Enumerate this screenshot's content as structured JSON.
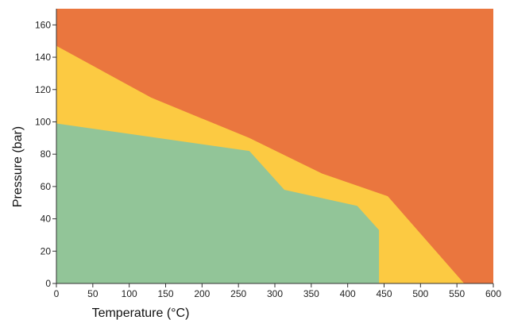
{
  "chart_data": {
    "type": "area",
    "title": "",
    "xlabel": "Temperature (°C)",
    "ylabel": "Pressure (bar)",
    "xlim": [
      0,
      600
    ],
    "ylim": [
      0,
      170
    ],
    "x_ticks": [
      0,
      50,
      100,
      150,
      200,
      250,
      300,
      350,
      400,
      450,
      500,
      550,
      600
    ],
    "y_ticks": [
      0,
      20,
      40,
      60,
      80,
      100,
      120,
      140,
      160
    ],
    "grid": false,
    "legend": "none",
    "regions": [
      {
        "color": "#ea763e",
        "points": [
          [
            0,
            0
          ],
          [
            600,
            0
          ],
          [
            600,
            170
          ],
          [
            0,
            170
          ]
        ]
      },
      {
        "color": "#fcca42",
        "points": [
          [
            0,
            0
          ],
          [
            0,
            147
          ],
          [
            130,
            115
          ],
          [
            265,
            90
          ],
          [
            365,
            68
          ],
          [
            455,
            54
          ],
          [
            560,
            0
          ]
        ]
      },
      {
        "color": "#92c598",
        "points": [
          [
            0,
            0
          ],
          [
            0,
            99
          ],
          [
            265,
            82
          ],
          [
            313,
            58
          ],
          [
            413,
            48
          ],
          [
            443,
            33
          ],
          [
            443,
            0
          ]
        ]
      }
    ]
  }
}
